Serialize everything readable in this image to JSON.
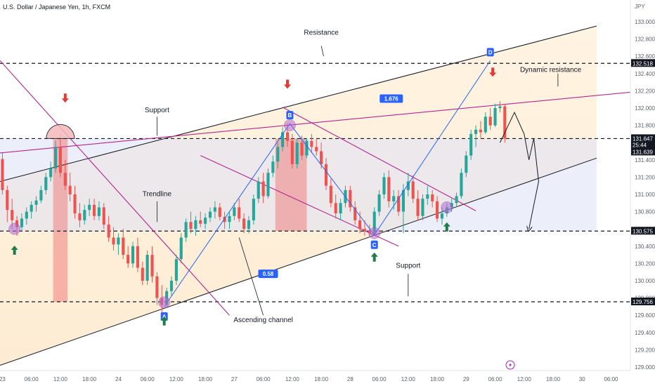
{
  "header": {
    "title": "U.S. Dollar / Japanese Yen, 1h, FXCM"
  },
  "colors": {
    "up": "#26a69a",
    "down": "#ef5350",
    "channel": "#131722",
    "magenta": "#b4268f",
    "blue": "#2962ff",
    "arrow_green": "#1e7d4b",
    "arrow_red": "#e53935"
  },
  "chart_data": {
    "type": "candlestick",
    "title": "U.S. Dollar / Japanese Yen, 1h, FXCM",
    "currency_label": "JPY",
    "ylim": [
      128.95,
      133.2
    ],
    "y_ticks": [
      "133.000",
      "132.800",
      "132.600",
      "132.400",
      "132.200",
      "132.000",
      "131.800",
      "131.600",
      "131.400",
      "131.200",
      "131.000",
      "130.800",
      "130.600",
      "130.400",
      "130.200",
      "130.000",
      "129.800",
      "129.600",
      "129.400",
      "129.200",
      "129.000"
    ],
    "y_tick_values": [
      133.0,
      132.8,
      132.6,
      132.4,
      132.2,
      132.0,
      131.8,
      131.6,
      131.4,
      131.2,
      131.0,
      130.8,
      130.6,
      130.4,
      130.2,
      130.0,
      129.8,
      129.6,
      129.4,
      129.2,
      129.0
    ],
    "x_ticks": [
      "23",
      "06:00",
      "12:00",
      "18:00",
      "24",
      "06:00",
      "12:00",
      "18:00",
      "27",
      "06:00",
      "12:00",
      "18:00",
      "28",
      "06:00",
      "12:00",
      "18:00",
      "29",
      "06:00",
      "12:00",
      "18:00",
      "30",
      "06:00"
    ],
    "x_tick_index": [
      0,
      6,
      12,
      18,
      24,
      30,
      36,
      42,
      48,
      54,
      60,
      66,
      72,
      78,
      84,
      90,
      96,
      102,
      108,
      114,
      120,
      126
    ],
    "x_range": [
      -0.5,
      130
    ],
    "levels": [
      {
        "price": 132.518,
        "label": "132.518",
        "style": "dashed"
      },
      {
        "price": 131.647,
        "label": "131.647",
        "style": "dashed",
        "sub": "25:44"
      },
      {
        "price": 131.639,
        "label": "131.639"
      },
      {
        "price": 130.575,
        "label": "130.575",
        "style": "dashed"
      },
      {
        "price": 129.756,
        "label": "129.756",
        "style": "dashed"
      }
    ],
    "channel": {
      "upper": [
        [
          -0.5,
          131.15
        ],
        [
          123,
          132.95
        ]
      ],
      "lower": [
        [
          -0.5,
          129.02
        ],
        [
          123,
          131.42
        ]
      ]
    },
    "magenta_lines": [
      {
        "name": "trendline-down",
        "points": [
          [
            -0.5,
            132.55
          ],
          [
            47,
            129.6
          ]
        ]
      },
      {
        "name": "support-resistance-line",
        "points": [
          [
            -0.5,
            131.48
          ],
          [
            133,
            132.2
          ]
        ]
      },
      {
        "name": "flag-upper",
        "points": [
          [
            58,
            132.01
          ],
          [
            98,
            130.81
          ]
        ]
      },
      {
        "name": "flag-lower",
        "points": [
          [
            41,
            131.45
          ],
          [
            82,
            130.4
          ]
        ]
      }
    ],
    "abcd_path": [
      [
        33.5,
        129.7
      ],
      [
        59.5,
        131.82
      ],
      [
        77,
        130.53
      ],
      [
        101,
        132.55
      ]
    ],
    "pivots": [
      {
        "label": "A",
        "index": 33.5,
        "price": 129.7
      },
      {
        "label": "B",
        "index": 59.5,
        "price": 131.82
      },
      {
        "label": "C",
        "index": 77,
        "price": 130.53
      },
      {
        "label": "D",
        "index": 101,
        "price": 132.55
      }
    ],
    "ratios": [
      {
        "label": "0.58",
        "index": 55,
        "price": 130.08
      },
      {
        "label": "1.676",
        "index": 80.5,
        "price": 132.11
      }
    ],
    "annotations": [
      {
        "text": "Resistance",
        "index": 66,
        "price": 132.85
      },
      {
        "text": "Dynamic resistance",
        "index": 113.5,
        "price": 132.42
      },
      {
        "text": "Support",
        "index": 32,
        "price": 131.95
      },
      {
        "text": "Trendline",
        "index": 32,
        "price": 130.98
      },
      {
        "text": "Ascending channel",
        "index": 54,
        "price": 129.52
      },
      {
        "text": "Support",
        "index": 84,
        "price": 130.15
      }
    ],
    "candles": [
      [
        131.41,
        131.48,
        131.0,
        131.05
      ],
      [
        131.05,
        131.1,
        130.68,
        130.82
      ],
      [
        130.82,
        130.95,
        130.6,
        130.7
      ],
      [
        130.7,
        130.75,
        130.52,
        130.62
      ],
      [
        130.62,
        130.78,
        130.58,
        130.72
      ],
      [
        130.72,
        130.85,
        130.65,
        130.8
      ],
      [
        130.8,
        130.92,
        130.72,
        130.88
      ],
      [
        130.88,
        130.98,
        130.8,
        130.93
      ],
      [
        130.93,
        131.1,
        130.9,
        131.05
      ],
      [
        131.05,
        131.25,
        131.0,
        131.2
      ],
      [
        131.2,
        131.38,
        131.15,
        131.3
      ],
      [
        131.3,
        131.62,
        131.25,
        131.55
      ],
      [
        131.55,
        131.7,
        131.2,
        131.25
      ],
      [
        131.25,
        131.4,
        131.05,
        131.1
      ],
      [
        131.1,
        131.25,
        130.92,
        131.0
      ],
      [
        131.0,
        131.1,
        130.72,
        130.78
      ],
      [
        130.78,
        130.9,
        130.62,
        130.7
      ],
      [
        130.7,
        130.88,
        130.65,
        130.82
      ],
      [
        130.82,
        130.95,
        130.75,
        130.88
      ],
      [
        130.88,
        130.95,
        130.7,
        130.75
      ],
      [
        130.75,
        130.92,
        130.7,
        130.85
      ],
      [
        130.85,
        130.9,
        130.6,
        130.65
      ],
      [
        130.65,
        130.75,
        130.45,
        130.5
      ],
      [
        130.5,
        130.62,
        130.35,
        130.42
      ],
      [
        130.42,
        130.55,
        130.3,
        130.5
      ],
      [
        130.5,
        130.6,
        130.25,
        130.3
      ],
      [
        130.3,
        130.4,
        130.15,
        130.2
      ],
      [
        130.2,
        130.45,
        130.15,
        130.4
      ],
      [
        130.4,
        130.5,
        130.1,
        130.15
      ],
      [
        130.15,
        130.22,
        129.95,
        130.0
      ],
      [
        130.0,
        130.35,
        129.95,
        130.3
      ],
      [
        130.3,
        130.4,
        129.98,
        130.05
      ],
      [
        130.05,
        130.1,
        129.72,
        129.8
      ],
      [
        129.8,
        129.95,
        129.62,
        129.72
      ],
      [
        129.72,
        129.92,
        129.68,
        129.88
      ],
      [
        129.88,
        130.05,
        129.82,
        130.0
      ],
      [
        130.0,
        130.3,
        129.95,
        130.25
      ],
      [
        130.25,
        130.55,
        130.2,
        130.5
      ],
      [
        130.5,
        130.72,
        130.45,
        130.68
      ],
      [
        130.68,
        130.8,
        130.55,
        130.6
      ],
      [
        130.6,
        130.75,
        130.52,
        130.7
      ],
      [
        130.7,
        130.8,
        130.62,
        130.66
      ],
      [
        130.66,
        130.78,
        130.6,
        130.73
      ],
      [
        130.73,
        130.85,
        130.68,
        130.8
      ],
      [
        130.8,
        130.92,
        130.72,
        130.85
      ],
      [
        130.85,
        130.9,
        130.7,
        130.74
      ],
      [
        130.74,
        130.8,
        130.6,
        130.68
      ],
      [
        130.68,
        130.8,
        130.6,
        130.75
      ],
      [
        130.75,
        130.9,
        130.7,
        130.85
      ],
      [
        130.85,
        130.95,
        130.68,
        130.72
      ],
      [
        130.72,
        130.78,
        130.55,
        130.6
      ],
      [
        130.6,
        130.75,
        130.55,
        130.7
      ],
      [
        130.7,
        131.0,
        130.65,
        130.95
      ],
      [
        130.95,
        131.2,
        130.9,
        131.15
      ],
      [
        131.15,
        131.25,
        130.9,
        130.98
      ],
      [
        130.98,
        131.3,
        130.95,
        131.25
      ],
      [
        131.25,
        131.45,
        131.2,
        131.38
      ],
      [
        131.38,
        131.6,
        131.3,
        131.55
      ],
      [
        131.55,
        131.78,
        131.5,
        131.72
      ],
      [
        131.72,
        131.82,
        131.55,
        131.62
      ],
      [
        131.62,
        131.7,
        131.3,
        131.35
      ],
      [
        131.35,
        131.65,
        131.3,
        131.6
      ],
      [
        131.6,
        131.68,
        131.4,
        131.45
      ],
      [
        131.45,
        131.65,
        131.42,
        131.62
      ],
      [
        131.62,
        131.7,
        131.48,
        131.55
      ],
      [
        131.55,
        131.65,
        131.45,
        131.5
      ],
      [
        131.5,
        131.6,
        131.3,
        131.35
      ],
      [
        131.35,
        131.42,
        131.05,
        131.1
      ],
      [
        131.1,
        131.18,
        130.85,
        130.9
      ],
      [
        130.9,
        131.0,
        130.72,
        130.78
      ],
      [
        130.78,
        130.95,
        130.7,
        130.9
      ],
      [
        130.9,
        131.1,
        130.85,
        131.05
      ],
      [
        131.05,
        131.1,
        130.8,
        130.85
      ],
      [
        130.85,
        130.92,
        130.65,
        130.7
      ],
      [
        130.7,
        130.8,
        130.55,
        130.6
      ],
      [
        130.6,
        130.7,
        130.52,
        130.58
      ],
      [
        130.58,
        130.65,
        130.5,
        130.55
      ],
      [
        130.55,
        130.85,
        130.52,
        130.8
      ],
      [
        130.8,
        131.05,
        130.75,
        131.0
      ],
      [
        131.0,
        131.25,
        130.95,
        131.2
      ],
      [
        131.2,
        131.28,
        130.85,
        130.92
      ],
      [
        130.92,
        131.05,
        130.82,
        130.98
      ],
      [
        130.98,
        131.05,
        130.75,
        130.8
      ],
      [
        130.8,
        131.12,
        130.55,
        131.05
      ],
      [
        131.05,
        131.25,
        130.98,
        131.15
      ],
      [
        131.15,
        131.22,
        130.9,
        130.95
      ],
      [
        130.95,
        131.05,
        130.7,
        130.75
      ],
      [
        130.75,
        131.0,
        130.7,
        130.95
      ],
      [
        130.95,
        131.1,
        130.88,
        131.0
      ],
      [
        131.0,
        131.05,
        130.85,
        130.92
      ],
      [
        130.92,
        130.98,
        130.68,
        130.72
      ],
      [
        130.72,
        130.85,
        130.65,
        130.78
      ],
      [
        130.78,
        130.9,
        130.74,
        130.85
      ],
      [
        130.85,
        130.95,
        130.8,
        130.9
      ],
      [
        130.9,
        131.02,
        130.85,
        130.98
      ],
      [
        130.98,
        131.3,
        130.95,
        131.25
      ],
      [
        131.25,
        131.5,
        131.2,
        131.45
      ],
      [
        131.45,
        131.75,
        131.4,
        131.7
      ],
      [
        131.7,
        131.8,
        131.55,
        131.75
      ],
      [
        131.75,
        131.85,
        131.65,
        131.72
      ],
      [
        131.72,
        131.95,
        131.7,
        131.9
      ],
      [
        131.9,
        132.0,
        131.75,
        131.8
      ],
      [
        131.8,
        132.05,
        131.78,
        132.0
      ],
      [
        132.0,
        132.08,
        131.95,
        132.02
      ],
      [
        132.02,
        132.05,
        131.6,
        131.647
      ]
    ]
  }
}
